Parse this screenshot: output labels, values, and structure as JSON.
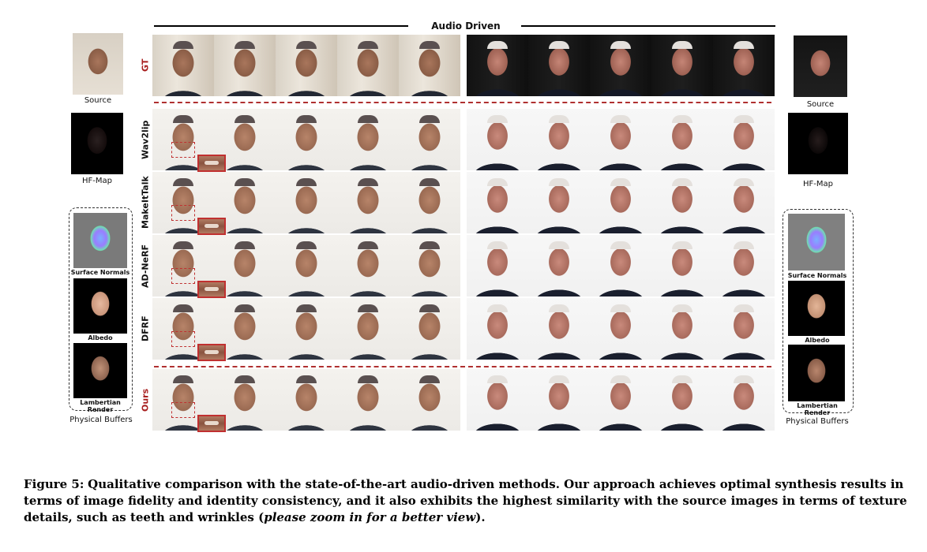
{
  "header": {
    "title": "Audio Driven"
  },
  "rows": [
    {
      "label": "GT",
      "highlight": true
    },
    {
      "label": "Wav2lip",
      "highlight": false
    },
    {
      "label": "MakeItTalk",
      "highlight": false
    },
    {
      "label": "AD-NeRF",
      "highlight": false
    },
    {
      "label": "DFRF",
      "highlight": false
    },
    {
      "label": "Ours",
      "highlight": true
    }
  ],
  "left_panel": {
    "source_label": "Source",
    "hfmap_label": "HF-Map",
    "buffers": [
      "Surface Normals",
      "Albedo",
      "Lambertian Render"
    ],
    "buffers_title": "Physical Buffers"
  },
  "right_panel": {
    "source_label": "Source",
    "hfmap_label": "HF-Map",
    "buffers": [
      "Surface Normals",
      "Albedo",
      "Lambertian Render"
    ],
    "buffers_title": "Physical Buffers"
  },
  "caption": {
    "figure_label": "Figure 5:",
    "text_part1": "Qualitative comparison with the state-of-the-art audio-driven methods. Our approach achieves optimal synthesis results in terms of image fidelity and identity consistency, and it also exhibits the highest similarity with the source images in terms of texture details, such as teeth and wrinkles (",
    "text_italic": "please zoom in for a better view",
    "text_part2": ")."
  },
  "colors": {
    "accent_red": "#b03030",
    "text": "#111111"
  }
}
